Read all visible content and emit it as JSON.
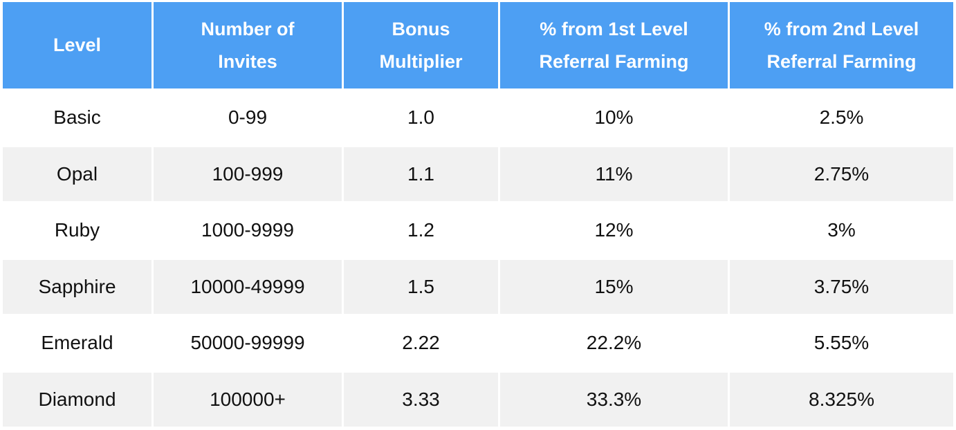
{
  "table": {
    "headers": [
      [
        "Level"
      ],
      [
        "Number of",
        "Invites"
      ],
      [
        "Bonus",
        "Multiplier"
      ],
      [
        "% from 1st Level",
        "Referral Farming"
      ],
      [
        "% from 2nd Level",
        "Referral Farming"
      ]
    ],
    "rows": [
      [
        "Basic",
        "0-99",
        "1.0",
        "10%",
        "2.5%"
      ],
      [
        "Opal",
        "100-999",
        "1.1",
        "11%",
        "2.75%"
      ],
      [
        "Ruby",
        "1000-9999",
        "1.2",
        "12%",
        "3%"
      ],
      [
        "Sapphire",
        "10000-49999",
        "1.5",
        "15%",
        "3.75%"
      ],
      [
        "Emerald",
        "50000-99999",
        "2.22",
        "22.2%",
        "5.55%"
      ],
      [
        "Diamond",
        "100000+",
        "3.33",
        "33.3%",
        "8.325%"
      ]
    ]
  },
  "colors": {
    "header_bg": "#4d9ff3",
    "header_text": "#ffffff",
    "row_alt_bg": "#f1f1f1"
  }
}
